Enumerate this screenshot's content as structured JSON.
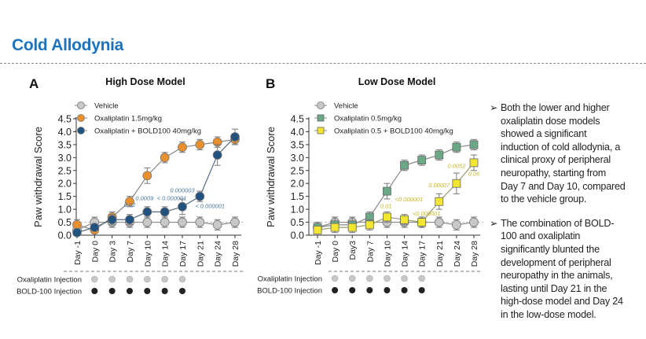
{
  "page_title": "Cold Allodynia",
  "bullets": [
    {
      "icon": "arrow-bullet-icon",
      "lines": [
        "Both the lower and higher",
        "oxaliplatin dose models",
        "showed a significant",
        "induction of cold allodynia, a",
        "clinical proxy of peripheral",
        "neuropathy, starting from",
        "Day 7 and Day 10, compared",
        "to the vehicle group."
      ]
    },
    {
      "icon": "arrow-bullet-icon",
      "lines": [
        "The combination of BOLD-",
        "100 and oxaliplatin",
        "significantly blunted the",
        "development of peripheral",
        "neuropathy in the animals,",
        "lasting until Day 21 in the",
        "high-dose model and Day 24",
        "in the low-dose model."
      ]
    }
  ],
  "arrow_glyph": "➢",
  "chart_data": [
    {
      "type": "line",
      "panel": "A",
      "title": "High Dose Model",
      "ylabel": "Paw withdrawal Score",
      "ylim": [
        0,
        4.5
      ],
      "yticks": [
        "0.0",
        "0.5",
        "1.0",
        "1.5",
        "2.0",
        "2.5",
        "3.0",
        "3.5",
        "4.0",
        "4.5"
      ],
      "reference_line": 0.5,
      "categories": [
        "Day -1",
        "Day 0",
        "Day 3",
        "Day 7",
        "Day 10",
        "Day 14",
        "Day 17",
        "Day 21",
        "Day 24",
        "Day 28"
      ],
      "series": [
        {
          "name": "Vehicle",
          "marker": "circle",
          "color": "#c8c8c8",
          "values": [
            0.2,
            0.5,
            0.5,
            0.5,
            0.5,
            0.5,
            0.5,
            0.5,
            0.4,
            0.5
          ],
          "errors": [
            0.2,
            0.2,
            0.2,
            0.2,
            0.2,
            0.2,
            0.2,
            0.2,
            0.2,
            0.2
          ]
        },
        {
          "name": "Oxaliplatin 1.5mg/kg",
          "marker": "circle",
          "color": "#e8902e",
          "values": [
            0.4,
            0.2,
            0.7,
            1.3,
            2.3,
            3.0,
            3.4,
            3.5,
            3.6,
            3.7
          ],
          "errors": [
            0.2,
            0.1,
            0.2,
            0.2,
            0.3,
            0.2,
            0.2,
            0.2,
            0.2,
            0.2
          ]
        },
        {
          "name": "Oxaliplatin + BOLD100 40mg/kg",
          "marker": "circle",
          "color": "#22527e",
          "values": [
            0.1,
            0.3,
            0.6,
            0.6,
            0.9,
            0.9,
            1.1,
            1.5,
            3.1,
            3.8
          ],
          "errors": [
            0.1,
            0.1,
            0.2,
            0.2,
            0.2,
            0.2,
            0.3,
            0.2,
            0.4,
            0.3
          ]
        }
      ],
      "annotations": [
        {
          "text": "0.02",
          "category": "Day 7",
          "y": 1.1
        },
        {
          "text": "0.0009",
          "category": "Day 10",
          "y": 1.35
        },
        {
          "text": "< 0.000001",
          "category": "Day 14",
          "y": 1.35
        },
        {
          "text": "0.000003",
          "category": "Day 17",
          "y": 1.65
        },
        {
          "text": "< 0.000001",
          "category": "Day 21",
          "y": 1.05
        }
      ],
      "annotation_color": "#4a78a0",
      "injections": {
        "labels": [
          "Oxaliplatin Injection",
          "BOLD-100 Injection"
        ],
        "days": [
          "Day 0",
          "Day 3",
          "Day 7",
          "Day 10",
          "Day 14",
          "Day 17"
        ],
        "colors": [
          "#c8c8c8",
          "#222222"
        ]
      }
    },
    {
      "type": "line",
      "panel": "B",
      "title": "Low Dose Model",
      "ylabel": "Paw withdrawal Score",
      "ylim": [
        0,
        4.5
      ],
      "yticks": [
        "0.0",
        "0.5",
        "1.0",
        "1.5",
        "2.0",
        "2.5",
        "3.0",
        "3.5",
        "4.0",
        "4.5"
      ],
      "reference_line": 0.5,
      "categories": [
        "Day -1",
        "Day 0",
        "Day3",
        "Day 7",
        "Day 10",
        "Day 14",
        "Day 17",
        "Day 21",
        "Day 24",
        "Day 28"
      ],
      "series": [
        {
          "name": "Vehicle",
          "marker": "circle",
          "color": "#c8c8c8",
          "values": [
            0.3,
            0.5,
            0.5,
            0.5,
            0.5,
            0.5,
            0.5,
            0.5,
            0.4,
            0.5
          ],
          "errors": [
            0.2,
            0.2,
            0.2,
            0.2,
            0.2,
            0.2,
            0.2,
            0.2,
            0.2,
            0.2
          ]
        },
        {
          "name": "Oxaliplatin 0.5mg/kg",
          "marker": "square",
          "color": "#6aa886",
          "values": [
            0.3,
            0.4,
            0.4,
            0.7,
            1.7,
            2.7,
            2.9,
            3.1,
            3.4,
            3.5
          ],
          "errors": [
            0.1,
            0.3,
            0.3,
            0.2,
            0.3,
            0.2,
            0.2,
            0.2,
            0.2,
            0.2
          ]
        },
        {
          "name": "Oxaliplatin 0.5 + BOLD100 40mg/kg",
          "marker": "square",
          "color": "#f2e632",
          "values": [
            0.2,
            0.3,
            0.3,
            0.4,
            0.7,
            0.6,
            0.5,
            1.3,
            2.0,
            2.8
          ],
          "errors": [
            0.1,
            0.1,
            0.1,
            0.2,
            0.2,
            0.2,
            0.2,
            0.3,
            0.4,
            0.3
          ]
        }
      ],
      "annotations": [
        {
          "text": "0.01",
          "category": "Day 10",
          "y": 1.05
        },
        {
          "text": "<0.000001",
          "category": "Day 14",
          "y": 1.15
        },
        {
          "text": "<0.000001",
          "category": "Day 17",
          "y": 0.88
        },
        {
          "text": "0.00007",
          "category": "Day 21",
          "y": 1.85
        },
        {
          "text": "0.0052",
          "category": "Day 24",
          "y": 2.6
        },
        {
          "text": "0.06",
          "category": "Day 28",
          "y": 2.3
        }
      ],
      "annotation_color": "#c9b82a",
      "injections": {
        "labels": [
          "Oxaliplatin Injection",
          "BOLD-100 Injection"
        ],
        "days": [
          "Day 0",
          "Day3",
          "Day 7",
          "Day 10",
          "Day 14",
          "Day 17"
        ],
        "colors": [
          "#c8c8c8",
          "#222222"
        ]
      }
    }
  ]
}
